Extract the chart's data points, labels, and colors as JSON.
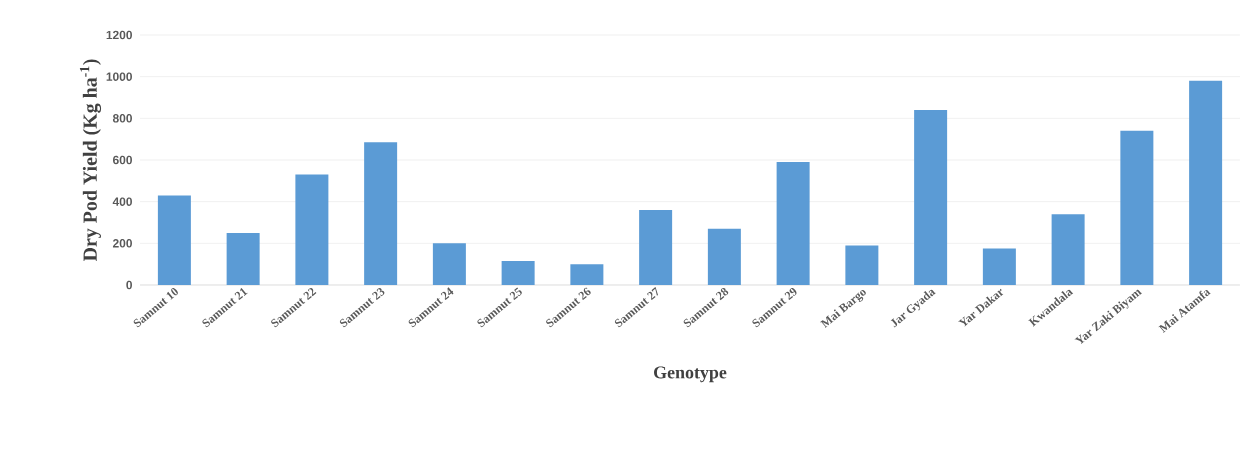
{
  "chart_data": {
    "type": "bar",
    "xlabel": "Genotype",
    "ylabel": "Dry Pod Yield (Kg ha$^{-1}$)",
    "categories": [
      "Samnut 10",
      "Samnut 21",
      "Samnut 22",
      "Samnut 23",
      "Samnut 24",
      "Samnut 25",
      "Samnut 26",
      "Samnut 27",
      "Samnut 28",
      "Samnut 29",
      "Mai Bargo",
      "Jar Gyada",
      "Yar Dakar",
      "Kwandala",
      "Yar Zaki Biyam",
      "Mai Atamfa"
    ],
    "values": [
      430,
      250,
      530,
      685,
      200,
      115,
      100,
      360,
      270,
      590,
      190,
      840,
      175,
      340,
      740,
      980
    ],
    "color": "#5b9bd5",
    "ylim": [
      0,
      1200
    ],
    "yticks": [
      0,
      200,
      400,
      600,
      800,
      1000,
      1200
    ],
    "grid": "y"
  }
}
